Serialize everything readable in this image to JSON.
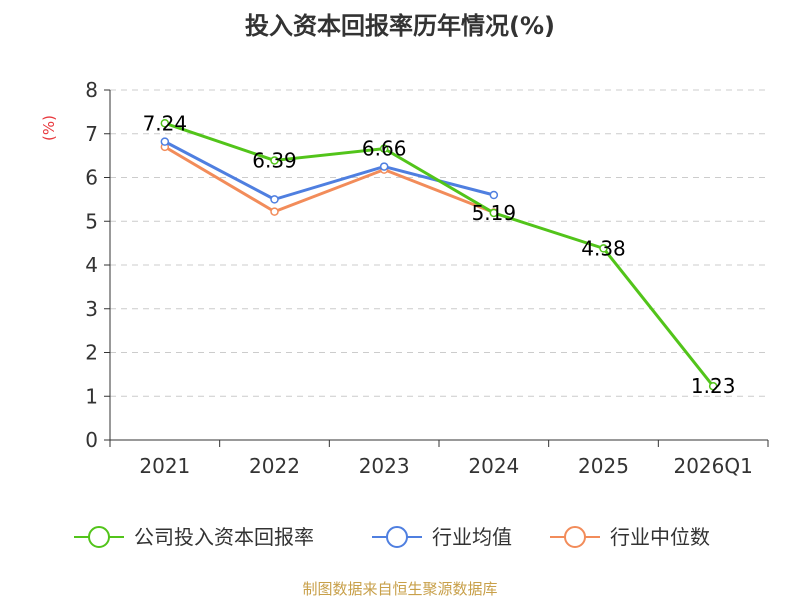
{
  "chart_data": {
    "type": "line",
    "title": "投入资本回报率历年情况(%)",
    "ylabel": "(%)",
    "xlabel": "",
    "categories": [
      "2021",
      "2022",
      "2023",
      "2024",
      "2025",
      "2026Q1"
    ],
    "ylim": [
      0,
      8
    ],
    "yticks": [
      0,
      1,
      2,
      3,
      4,
      5,
      6,
      7,
      8
    ],
    "grid": true,
    "legend_position": "bottom",
    "series": [
      {
        "name": "公司投入资本回报率",
        "color": "#52c41a",
        "values": [
          7.24,
          6.39,
          6.66,
          5.19,
          4.38,
          1.23
        ],
        "labels": [
          "7.24",
          "6.39",
          "6.66",
          "5.19",
          "4.38",
          "1.23"
        ]
      },
      {
        "name": "行业均值",
        "color": "#4f7fe0",
        "values": [
          6.82,
          5.5,
          6.25,
          5.6,
          null,
          null
        ]
      },
      {
        "name": "行业中位数",
        "color": "#f28c5a",
        "values": [
          6.7,
          5.22,
          6.18,
          5.2,
          null,
          null
        ]
      }
    ],
    "source": "制图数据来自恒生聚源数据库"
  }
}
